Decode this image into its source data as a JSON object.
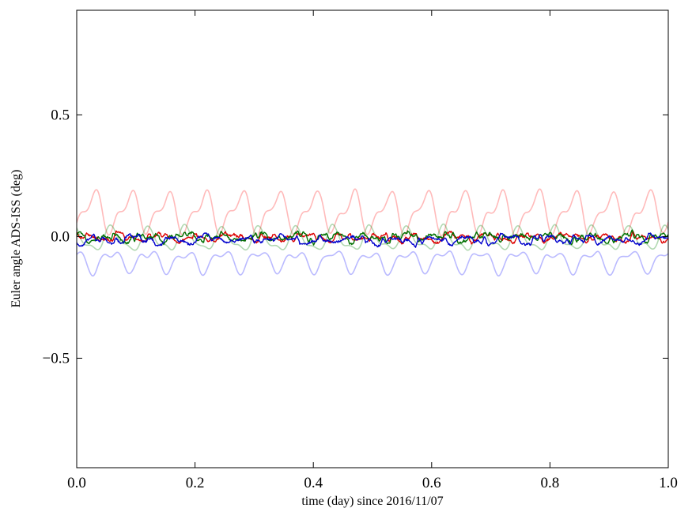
{
  "window": {
    "background": "#ffffff"
  },
  "chart_data": {
    "type": "line",
    "title": "",
    "xlabel": "time (day) since 2016/11/07",
    "ylabel": "Euler angle ADS-ISS (deg)",
    "xlim": [
      0.0,
      1.0
    ],
    "ylim": [
      -0.95,
      0.93
    ],
    "xticks": [
      0.0,
      0.2,
      0.4,
      0.6,
      0.8,
      1.0
    ],
    "xtick_labels": [
      "0.0",
      "0.2",
      "0.4",
      "0.6",
      "0.8",
      "1.0"
    ],
    "yticks": [
      0.5,
      0.0,
      -0.5
    ],
    "ytick_labels": [
      "0.5",
      "0.0",
      "−0.5"
    ],
    "grid": false,
    "legend": "none",
    "axis_color": "#000000",
    "tick_direction": "in",
    "tick_length": 7,
    "orbits_per_day": 16,
    "orbital_period_day": 0.0625,
    "samples": 900,
    "description": "Six Euler-angle time series vs time in days: three pale curves (red, green, blue) oscillating at the ISS orbital period (~16 cycles/day, pale red peaking near +0.22 deg, pale blue dipping near -0.16 deg, pale green within +/-0.07 deg) and three dark noisy curves (red, green, blue) fluctuating within about +/-0.04 deg of 0.",
    "series": [
      {
        "name": "pale-red-raw",
        "color": "#ff0000",
        "alpha": 0.27,
        "width": 1.6,
        "baseline": 0.1,
        "amp1": 0.07,
        "phase1": -1.2,
        "amp2": 0.035,
        "phase2": 0.7,
        "noise": 0.008,
        "noise_step": 9,
        "jitter": 0.0,
        "seed": 11,
        "approx_range": [
          0.0,
          0.22
        ]
      },
      {
        "name": "pale-green-raw",
        "color": "#008000",
        "alpha": 0.3,
        "width": 1.6,
        "baseline": -0.012,
        "amp1": 0.042,
        "phase1": 1.9,
        "amp2": 0.018,
        "phase2": 2.8,
        "noise": 0.006,
        "noise_step": 9,
        "jitter": 0.0,
        "seed": 22,
        "approx_range": [
          -0.07,
          0.05
        ]
      },
      {
        "name": "pale-blue-raw",
        "color": "#0000ff",
        "alpha": 0.27,
        "width": 1.6,
        "baseline": -0.1,
        "amp1": 0.038,
        "phase1": 1.94,
        "amp2": 0.02,
        "phase2": -0.5,
        "noise": 0.006,
        "noise_step": 9,
        "jitter": 0.0,
        "seed": 33,
        "approx_range": [
          -0.16,
          -0.04
        ]
      },
      {
        "name": "red-filtered",
        "color": "#dd0000",
        "alpha": 1.0,
        "width": 1.4,
        "baseline": -0.004,
        "amp1": 0.01,
        "phase1": 0.3,
        "amp2": 0.004,
        "phase2": 1.1,
        "noise": 0.016,
        "noise_step": 5,
        "jitter": 0.004,
        "seed": 44,
        "approx_range": [
          -0.04,
          0.04
        ]
      },
      {
        "name": "green-filtered",
        "color": "#007000",
        "alpha": 1.0,
        "width": 1.4,
        "baseline": -0.002,
        "amp1": 0.01,
        "phase1": 2.1,
        "amp2": 0.005,
        "phase2": 0.2,
        "noise": 0.016,
        "noise_step": 4,
        "jitter": 0.004,
        "seed": 55,
        "approx_range": [
          -0.04,
          0.06
        ]
      },
      {
        "name": "blue-filtered",
        "color": "#0000cc",
        "alpha": 1.0,
        "width": 1.4,
        "baseline": -0.012,
        "amp1": 0.011,
        "phase1": 4.0,
        "amp2": 0.004,
        "phase2": 2.2,
        "noise": 0.016,
        "noise_step": 5,
        "jitter": 0.004,
        "seed": 66,
        "approx_range": [
          -0.05,
          0.03
        ]
      }
    ]
  }
}
